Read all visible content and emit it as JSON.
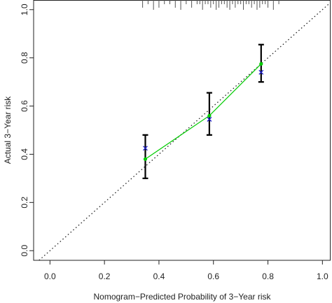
{
  "chart_data": {
    "type": "calibration",
    "xlabel": "Nomogram−Predicted Probability of 3−Year risk",
    "ylabel": "Actual 3−Year risk",
    "x": [
      0.35,
      0.585,
      0.775
    ],
    "series": [
      {
        "color": "#00cc00",
        "marker": "dot",
        "values": [
          0.38,
          0.56,
          0.775
        ],
        "lower": [
          0.3,
          0.48,
          0.7
        ],
        "upper": [
          0.48,
          0.655,
          0.855
        ]
      },
      {
        "color": "#1a1acc",
        "marker": "x",
        "values": [
          0.425,
          0.545,
          0.74
        ]
      }
    ],
    "rug": [
      0.34,
      0.36,
      0.38,
      0.4,
      0.42,
      0.44,
      0.46,
      0.48,
      0.5,
      0.52,
      0.54,
      0.55,
      0.56,
      0.57,
      0.58,
      0.59,
      0.6,
      0.61,
      0.62,
      0.63,
      0.64,
      0.65,
      0.66,
      0.67,
      0.68,
      0.69,
      0.7,
      0.71,
      0.72,
      0.73,
      0.74,
      0.75,
      0.76,
      0.77,
      0.78,
      0.79,
      0.8,
      0.82,
      0.84
    ],
    "diagonal": true,
    "xlim": [
      -0.06,
      1.03
    ],
    "ylim": [
      -0.04,
      1.04
    ],
    "xticks": [
      {
        "value": 0,
        "label": "0.0"
      },
      0.2,
      0.4,
      0.6,
      0.8,
      {
        "value": 1,
        "label": "1.0"
      }
    ],
    "yticks": [
      {
        "value": 0,
        "label": "0.0"
      },
      0.2,
      0.4,
      0.6,
      0.8,
      {
        "value": 1,
        "label": "1.0"
      }
    ]
  }
}
